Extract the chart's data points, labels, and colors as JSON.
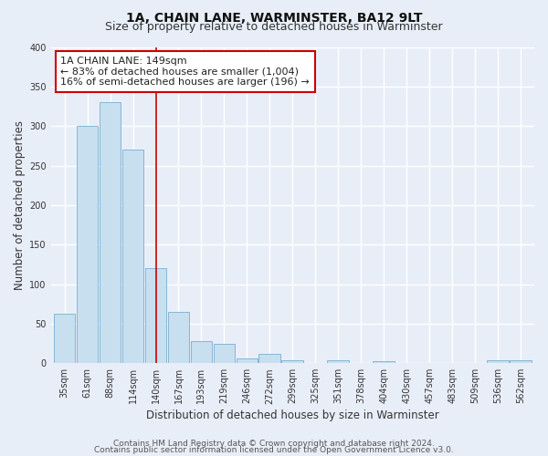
{
  "title": "1A, CHAIN LANE, WARMINSTER, BA12 9LT",
  "subtitle": "Size of property relative to detached houses in Warminster",
  "xlabel": "Distribution of detached houses by size in Warminster",
  "ylabel": "Number of detached properties",
  "bar_labels": [
    "35sqm",
    "61sqm",
    "88sqm",
    "114sqm",
    "140sqm",
    "167sqm",
    "193sqm",
    "219sqm",
    "246sqm",
    "272sqm",
    "299sqm",
    "325sqm",
    "351sqm",
    "378sqm",
    "404sqm",
    "430sqm",
    "457sqm",
    "483sqm",
    "509sqm",
    "536sqm",
    "562sqm"
  ],
  "bar_values": [
    63,
    300,
    330,
    270,
    120,
    65,
    28,
    24,
    6,
    12,
    4,
    0,
    4,
    0,
    3,
    0,
    0,
    0,
    0,
    4,
    4
  ],
  "bar_color": "#c8dff0",
  "bar_edge_color": "#7aaed0",
  "vline_x": 4.0,
  "vline_color": "#cc0000",
  "annotation_text": "1A CHAIN LANE: 149sqm\n← 83% of detached houses are smaller (1,004)\n16% of semi-detached houses are larger (196) →",
  "annotation_box_color": "#ffffff",
  "annotation_box_edge_color": "#cc0000",
  "ylim": [
    0,
    400
  ],
  "yticks": [
    0,
    50,
    100,
    150,
    200,
    250,
    300,
    350,
    400
  ],
  "footer_line1": "Contains HM Land Registry data © Crown copyright and database right 2024.",
  "footer_line2": "Contains public sector information licensed under the Open Government Licence v3.0.",
  "background_color": "#e8eef8",
  "plot_bg_color": "#e8eef8",
  "grid_color": "#ffffff",
  "title_fontsize": 10,
  "subtitle_fontsize": 9,
  "axis_label_fontsize": 8.5,
  "tick_fontsize": 7,
  "annotation_fontsize": 8,
  "footer_fontsize": 6.5
}
